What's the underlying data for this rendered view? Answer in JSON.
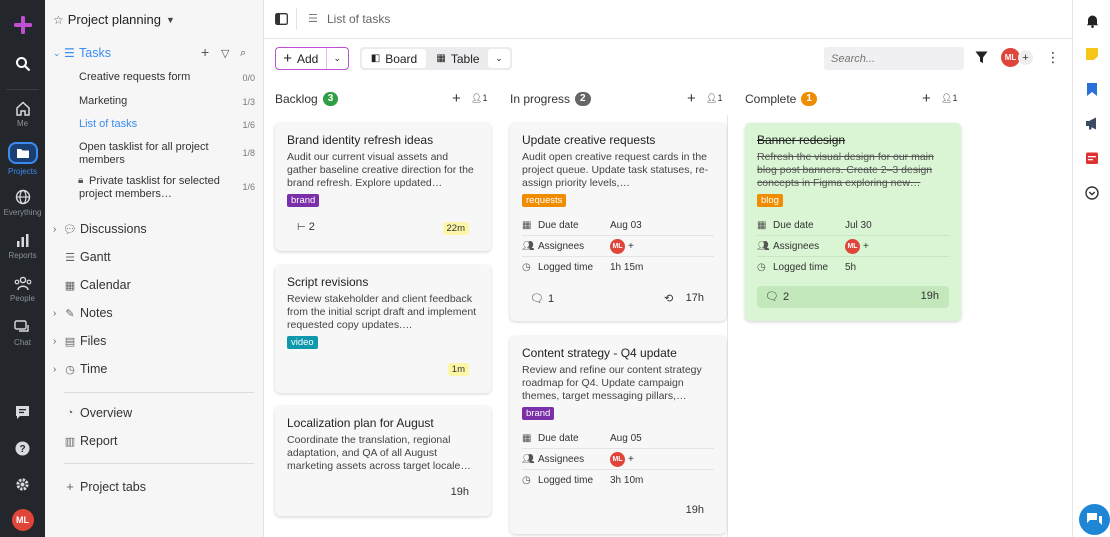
{
  "rail": {
    "items": [
      {
        "label": "Me"
      },
      {
        "label": "Projects"
      },
      {
        "label": "Everything"
      },
      {
        "label": "Reports"
      },
      {
        "label": "People"
      },
      {
        "label": "Chat"
      }
    ],
    "avatar": "ML",
    "brand_color": "#c14fd6"
  },
  "sidebar": {
    "project_title": "Project planning",
    "tasks_label": "Tasks",
    "tasklists": [
      {
        "label": "Creative requests form",
        "count": "0/0"
      },
      {
        "label": "Marketing",
        "count": "1/3"
      },
      {
        "label": "List of tasks",
        "count": "1/6"
      },
      {
        "label": "Open tasklist for all project members",
        "count": "1/8"
      },
      {
        "label": "Private tasklist for selected project members…",
        "count": "1/6"
      }
    ],
    "sections": [
      "Discussions",
      "Gantt",
      "Calendar",
      "Notes",
      "Files",
      "Time"
    ],
    "extras": [
      "Overview",
      "Report"
    ],
    "project_tabs": "Project tabs"
  },
  "topbar": {
    "breadcrumb": "List of tasks"
  },
  "toolbar": {
    "add_label": "Add",
    "board_label": "Board",
    "table_label": "Table",
    "search_placeholder": "Search...",
    "avatar": "ML"
  },
  "columns": [
    {
      "title": "Backlog",
      "count": "3",
      "color": "#2f9e44",
      "assignees": "1"
    },
    {
      "title": "In progress",
      "count": "2",
      "color": "#666666",
      "assignees": "1"
    },
    {
      "title": "Complete",
      "count": "1",
      "color": "#f08c00",
      "assignees": "1"
    }
  ],
  "cards": {
    "c1": {
      "title": "Brand identity refresh ideas",
      "desc": "Audit our current visual assets and gather baseline creative direction for the brand refresh. Explore updated…",
      "tag": "brand",
      "subtasks": "2",
      "time": "22m"
    },
    "c2": {
      "title": "Script revisions",
      "desc": "Review stakeholder and client feedback from the initial script draft and implement requested copy updates.…",
      "tag": "video",
      "time": "1m"
    },
    "c3": {
      "title": "Localization plan for August",
      "desc": "Coordinate the translation, regional adaptation, and QA of all August marketing assets across target locale…",
      "time": "19h"
    },
    "c4": {
      "title": "Update creative requests",
      "desc": "Audit open creative request cards in the project queue. Update task statuses, re-assign priority levels,…",
      "tag": "requests",
      "due_label": "Due date",
      "due": "Aug 03",
      "assignees_label": "Assignees",
      "avatar": "ML",
      "logged_label": "Logged time",
      "logged": "1h 15m",
      "comments": "1",
      "time": "17h"
    },
    "c5": {
      "title": "Content strategy - Q4 update",
      "desc": "Review and refine our content strategy roadmap for Q4. Update campaign themes, target messaging pillars,…",
      "tag": "brand",
      "due_label": "Due date",
      "due": "Aug 05",
      "assignees_label": "Assignees",
      "avatar": "ML",
      "logged_label": "Logged time",
      "logged": "3h 10m",
      "time": "19h"
    },
    "c6": {
      "title": "Banner redesign",
      "desc": "Refresh the visual design for our main blog post banners. Create 2–3 design concepts in Figma exploring new…",
      "tag": "blog",
      "due_label": "Due date",
      "due": "Jul 30",
      "assignees_label": "Assignees",
      "avatar": "ML",
      "logged_label": "Logged time",
      "logged": "5h",
      "comments": "2",
      "time": "19h"
    }
  },
  "tag_colors": {
    "brand": "#7b2fa8",
    "video": "#1098ad",
    "requests": "#f08c00",
    "blog": "#f08c00"
  }
}
